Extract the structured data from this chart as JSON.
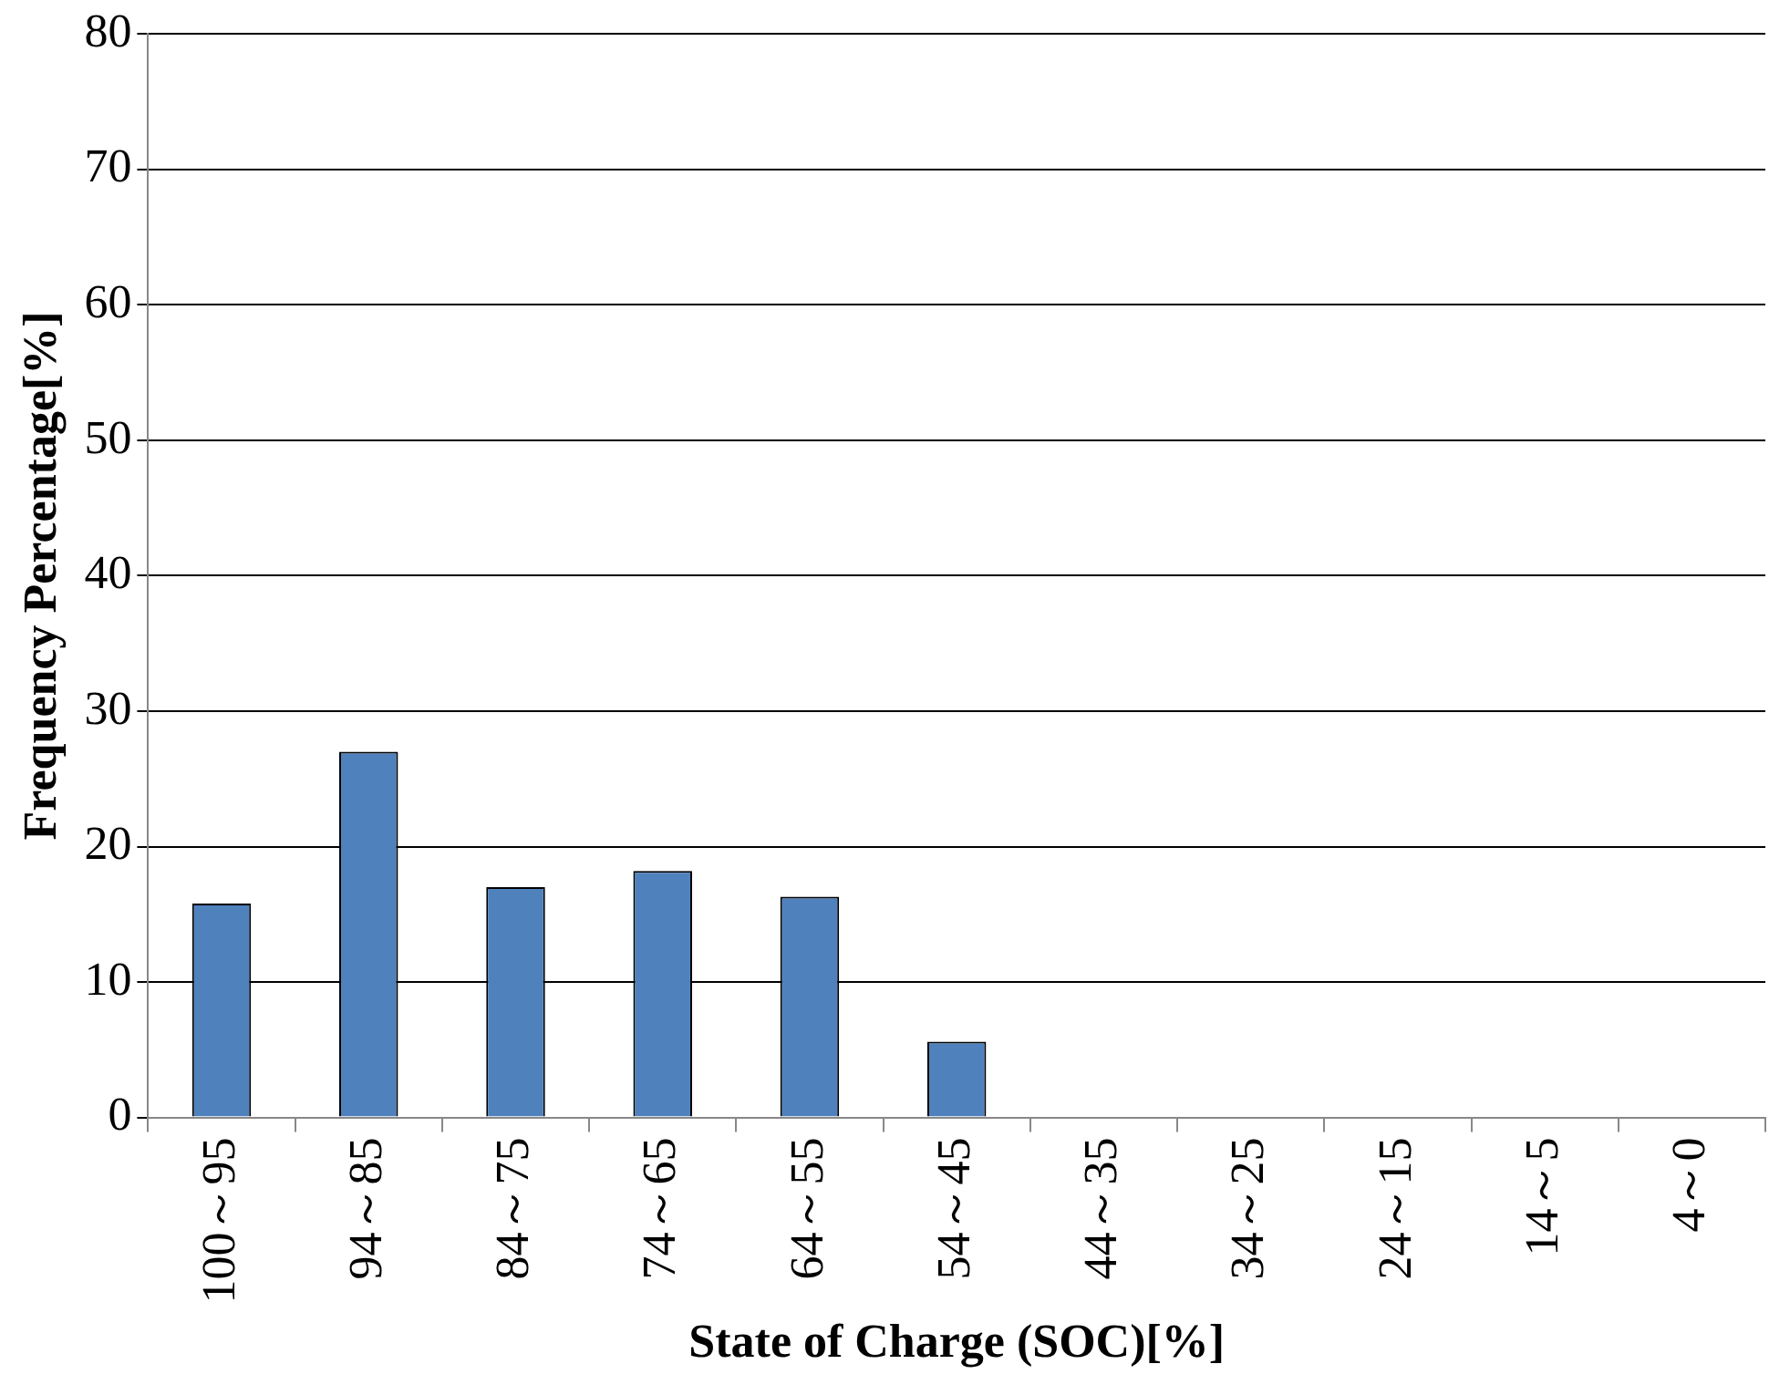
{
  "chart_data": {
    "type": "bar",
    "xlabel": "State of Charge (SOC)[%]",
    "ylabel": "Frequency Percentage[%]",
    "categories": [
      "100～95",
      "94～85",
      "84～75",
      "74～65",
      "64～55",
      "54～45",
      "44～35",
      "34～25",
      "24～15",
      "14～5",
      "4～0"
    ],
    "values": [
      15.8,
      27.0,
      17.0,
      18.2,
      16.3,
      5.6,
      0,
      0,
      0,
      0,
      0
    ],
    "color": "#4f81bd",
    "ylim": [
      0,
      80
    ],
    "yticks": [
      0,
      10,
      20,
      30,
      40,
      50,
      60,
      70,
      80
    ],
    "grid": "y",
    "legend": false
  }
}
